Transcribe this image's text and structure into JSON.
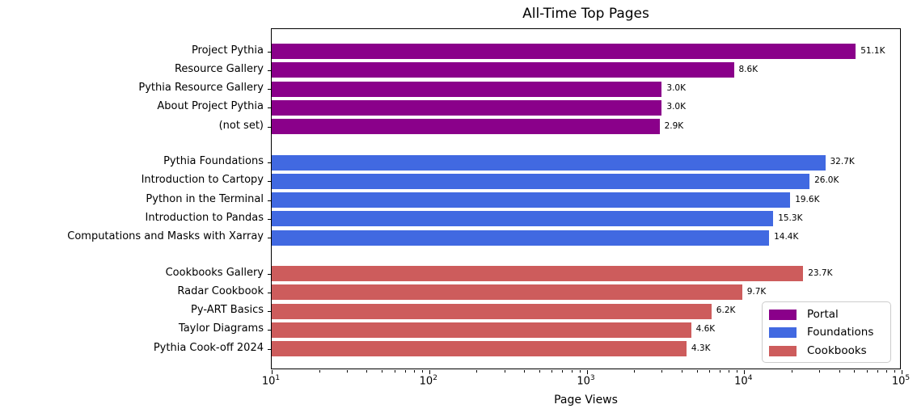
{
  "chart_data": {
    "type": "bar",
    "orientation": "horizontal",
    "title": "All-Time Top Pages",
    "xlabel": "Page Views",
    "xaxis": {
      "scale": "log",
      "min": 10,
      "max": 100000,
      "ticks": [
        {
          "base": "10",
          "exp": "1"
        },
        {
          "base": "10",
          "exp": "2"
        },
        {
          "base": "10",
          "exp": "3"
        },
        {
          "base": "10",
          "exp": "4"
        },
        {
          "base": "10",
          "exp": "5"
        }
      ]
    },
    "grid": false,
    "legend_position": "lower right",
    "groups": [
      {
        "name": "Portal",
        "color": "#8A008A",
        "items": [
          {
            "page": "Project Pythia",
            "views": 51100,
            "views_label": "51.1K"
          },
          {
            "page": "Resource Gallery",
            "views": 8600,
            "views_label": "8.6K"
          },
          {
            "page": "Pythia Resource Gallery",
            "views": 3000,
            "views_label": "3.0K"
          },
          {
            "page": "About Project Pythia",
            "views": 3000,
            "views_label": "3.0K"
          },
          {
            "page": "(not set)",
            "views": 2900,
            "views_label": "2.9K"
          }
        ]
      },
      {
        "name": "Foundations",
        "color": "#4169E1",
        "items": [
          {
            "page": "Pythia Foundations",
            "views": 32700,
            "views_label": "32.7K"
          },
          {
            "page": "Introduction to Cartopy",
            "views": 26000,
            "views_label": "26.0K"
          },
          {
            "page": "Python in the Terminal",
            "views": 19600,
            "views_label": "19.6K"
          },
          {
            "page": "Introduction to Pandas",
            "views": 15300,
            "views_label": "15.3K"
          },
          {
            "page": "Computations and Masks with Xarray",
            "views": 14400,
            "views_label": "14.4K"
          }
        ]
      },
      {
        "name": "Cookbooks",
        "color": "#CD5C5C",
        "items": [
          {
            "page": "Cookbooks Gallery",
            "views": 23700,
            "views_label": "23.7K"
          },
          {
            "page": "Radar Cookbook",
            "views": 9700,
            "views_label": "9.7K"
          },
          {
            "page": "Py-ART Basics",
            "views": 6200,
            "views_label": "6.2K"
          },
          {
            "page": "Taylor Diagrams",
            "views": 4600,
            "views_label": "4.6K"
          },
          {
            "page": "Pythia Cook-off 2024",
            "views": 4300,
            "views_label": "4.3K"
          }
        ]
      }
    ]
  }
}
